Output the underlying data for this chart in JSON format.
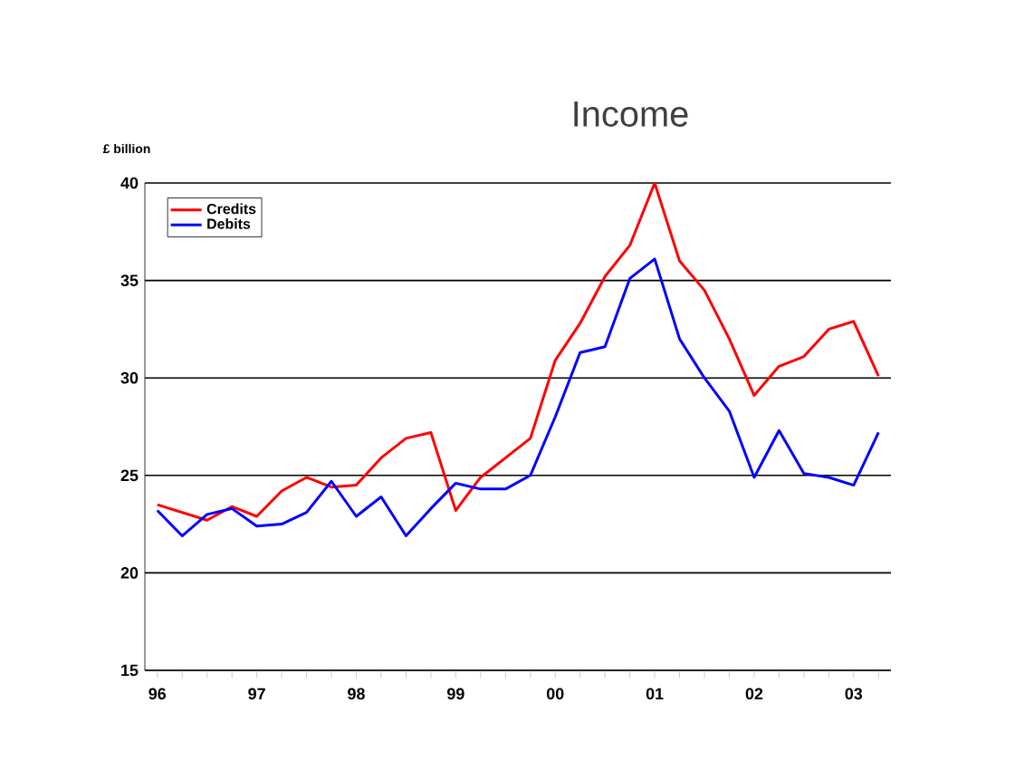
{
  "chart_data": {
    "type": "line",
    "title": "Income",
    "ylabel": "£ billion",
    "categories": [
      "96",
      null,
      null,
      null,
      "97",
      null,
      null,
      null,
      "98",
      null,
      null,
      null,
      "99",
      null,
      null,
      null,
      "00",
      null,
      null,
      null,
      "01",
      null,
      null,
      null,
      "02",
      null,
      null,
      null,
      "03",
      null
    ],
    "series": [
      {
        "name": "Credits",
        "color": "#ff0000",
        "values": [
          23.5,
          23.1,
          22.7,
          23.4,
          22.9,
          24.2,
          24.9,
          24.4,
          24.5,
          25.9,
          26.9,
          27.2,
          23.2,
          24.9,
          25.9,
          26.9,
          30.9,
          32.8,
          35.2,
          36.8,
          40.0,
          36.0,
          34.5,
          32.0,
          29.1,
          30.6,
          31.1,
          32.5,
          32.9,
          30.1
        ]
      },
      {
        "name": "Debits",
        "color": "#0000ff",
        "values": [
          23.2,
          21.9,
          23.0,
          23.3,
          22.4,
          22.5,
          23.1,
          24.7,
          22.9,
          23.9,
          21.9,
          23.3,
          24.6,
          24.3,
          24.3,
          25.0,
          28.0,
          31.3,
          31.6,
          35.1,
          36.1,
          32.0,
          30.0,
          28.3,
          24.9,
          27.3,
          25.1,
          24.9,
          24.5,
          27.2
        ]
      }
    ],
    "ylim": [
      15,
      40
    ],
    "yticks": [
      15,
      20,
      25,
      30,
      35,
      40
    ],
    "grid": "y",
    "legend": "top left",
    "marker": "none",
    "line_style": "solid"
  }
}
